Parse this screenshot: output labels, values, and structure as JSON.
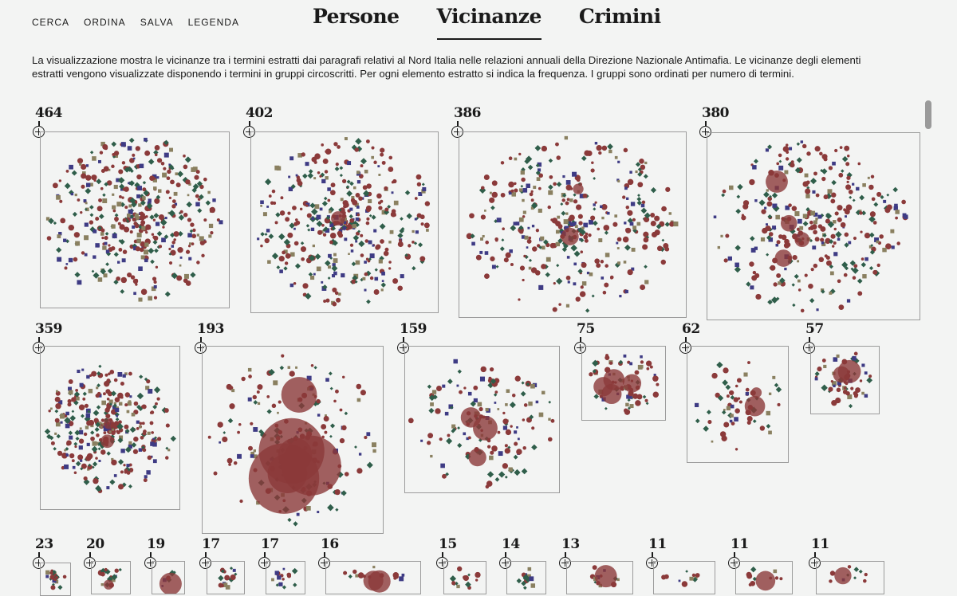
{
  "menu": [
    "CERCA",
    "ORDINA",
    "SALVA",
    "LEGENDA"
  ],
  "tabs": [
    {
      "label": "Persone",
      "active": false
    },
    {
      "label": "Vicinanze",
      "active": true
    },
    {
      "label": "Crimini",
      "active": false
    }
  ],
  "intro": "La visualizzazione mostra le vicinanze tra i termini estratti dai paragrafi relativi al Nord Italia nelle relazioni annuali della Direzione Nazionale Antimafia. Le vicinanze degli elementi estratti vengono visualizzate disponendo i termini in gruppi circoscritti. Per ogni elemento estratto si indica la frequenza. I gruppi sono ordinati per numero di termini.",
  "colors": {
    "circle": "#8b3a3a",
    "diamond": "#2f5e4a",
    "square_blue": "#3e3b84",
    "square_tan": "#8a8060"
  },
  "groups": [
    {
      "count": "464"
    },
    {
      "count": "402"
    },
    {
      "count": "386"
    },
    {
      "count": "380"
    },
    {
      "count": "359"
    },
    {
      "count": "193"
    },
    {
      "count": "159"
    },
    {
      "count": "75"
    },
    {
      "count": "62"
    },
    {
      "count": "57"
    },
    {
      "count": "23"
    },
    {
      "count": "20"
    },
    {
      "count": "19"
    },
    {
      "count": "17"
    },
    {
      "count": "17"
    },
    {
      "count": "16"
    },
    {
      "count": "15"
    },
    {
      "count": "14"
    },
    {
      "count": "13"
    },
    {
      "count": "11"
    },
    {
      "count": "11"
    },
    {
      "count": "11"
    }
  ]
}
